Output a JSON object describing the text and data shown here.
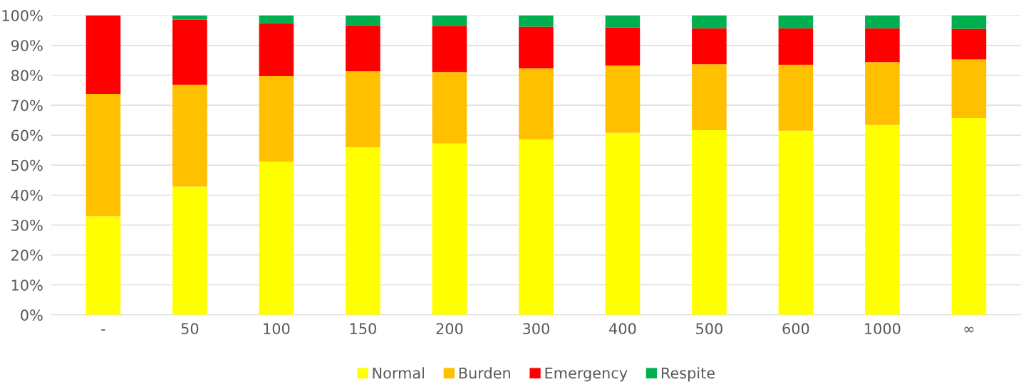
{
  "chart_data": {
    "type": "bar",
    "stacked": true,
    "categories": [
      "-",
      "50",
      "100",
      "150",
      "200",
      "300",
      "400",
      "500",
      "600",
      "1000",
      "∞"
    ],
    "series": [
      {
        "name": "Normal",
        "color": "#ffff00",
        "values": [
          32.9,
          42.8,
          51.1,
          56.0,
          57.2,
          58.6,
          60.8,
          61.7,
          61.5,
          63.4,
          65.7
        ]
      },
      {
        "name": "Burden",
        "color": "#ffc000",
        "values": [
          40.9,
          34.0,
          28.6,
          25.3,
          23.9,
          23.7,
          22.4,
          22.0,
          22.0,
          21.0,
          19.6
        ]
      },
      {
        "name": "Emergency",
        "color": "#ff0000",
        "values": [
          26.2,
          21.8,
          17.7,
          15.4,
          15.4,
          13.9,
          12.8,
          12.0,
          12.2,
          11.3,
          10.2
        ]
      },
      {
        "name": "Respite",
        "color": "#00b050",
        "values": [
          0,
          1.4,
          2.6,
          3.3,
          3.5,
          3.8,
          4.0,
          4.3,
          4.3,
          4.3,
          4.5
        ]
      }
    ],
    "ylim": [
      0,
      100
    ],
    "yticks": [
      {
        "value": 0,
        "label": "0%"
      },
      {
        "value": 10,
        "label": "10%"
      },
      {
        "value": 20,
        "label": "20%"
      },
      {
        "value": 30,
        "label": "30%"
      },
      {
        "value": 40,
        "label": "40%"
      },
      {
        "value": 50,
        "label": "50%"
      },
      {
        "value": 60,
        "label": "60%"
      },
      {
        "value": 70,
        "label": "70%"
      },
      {
        "value": 80,
        "label": "80%"
      },
      {
        "value": 90,
        "label": "90%"
      },
      {
        "value": 100,
        "label": "100%"
      }
    ],
    "grid": "y",
    "legend": "bottom"
  }
}
